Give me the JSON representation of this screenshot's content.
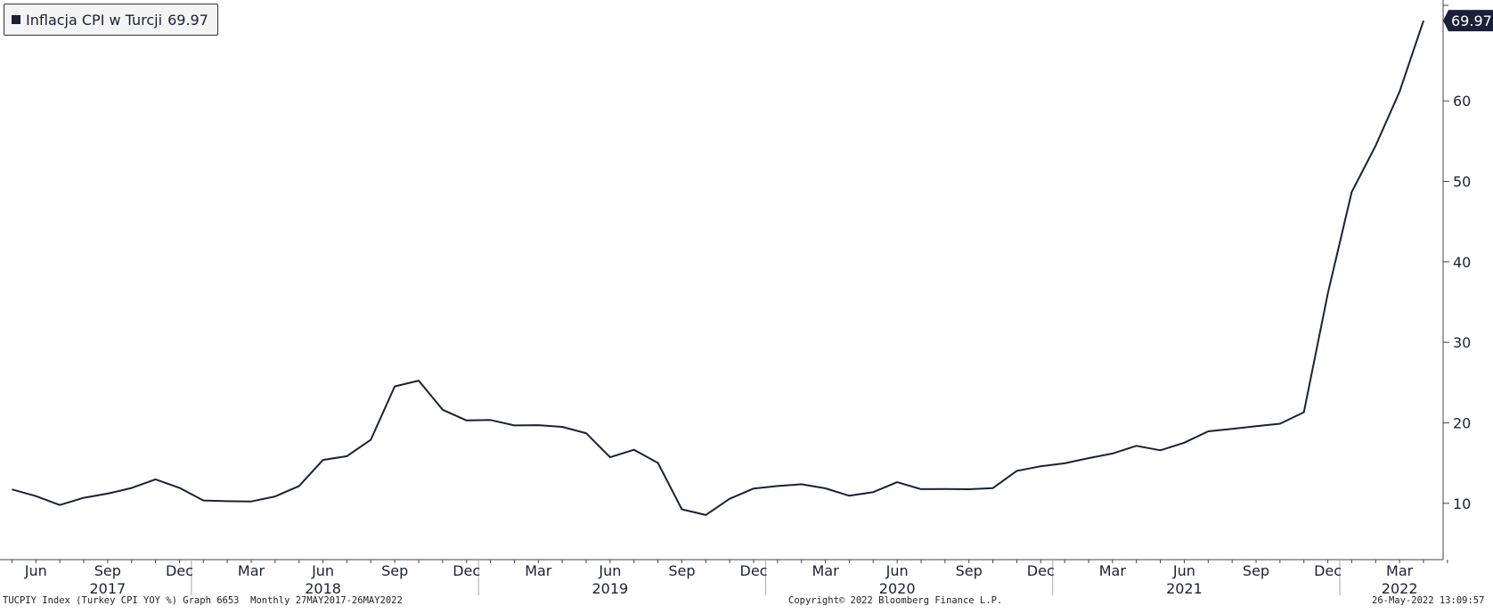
{
  "legend": {
    "label": "Inflacja CPI w Turcji",
    "value": "69.97"
  },
  "last_value_label": "69.97",
  "footer": {
    "left": "TUCPIY Index (Turkey CPI YOY %) Graph 6653  Monthly 27MAY2017-26MAY2022",
    "center": "Copyright© 2022 Bloomberg Finance L.P.",
    "right": "26-May-2022 13:09:57"
  },
  "colors": {
    "line": "#1a2038",
    "axis": "#444444"
  },
  "chart_data": {
    "type": "line",
    "title": "",
    "xlabel": "",
    "ylabel": "",
    "ylim": [
      3,
      73
    ],
    "yticks": [
      10,
      20,
      30,
      40,
      50,
      60
    ],
    "month_ticks": [
      {
        "label": "Jun",
        "x": "2017-06"
      },
      {
        "label": "Sep",
        "x": "2017-09"
      },
      {
        "label": "Dec",
        "x": "2017-12"
      },
      {
        "label": "Mar",
        "x": "2018-03"
      },
      {
        "label": "Jun",
        "x": "2018-06"
      },
      {
        "label": "Sep",
        "x": "2018-09"
      },
      {
        "label": "Dec",
        "x": "2018-12"
      },
      {
        "label": "Mar",
        "x": "2019-03"
      },
      {
        "label": "Jun",
        "x": "2019-06"
      },
      {
        "label": "Sep",
        "x": "2019-09"
      },
      {
        "label": "Dec",
        "x": "2019-12"
      },
      {
        "label": "Mar",
        "x": "2020-03"
      },
      {
        "label": "Jun",
        "x": "2020-06"
      },
      {
        "label": "Sep",
        "x": "2020-09"
      },
      {
        "label": "Dec",
        "x": "2020-12"
      },
      {
        "label": "Mar",
        "x": "2021-03"
      },
      {
        "label": "Jun",
        "x": "2021-06"
      },
      {
        "label": "Sep",
        "x": "2021-09"
      },
      {
        "label": "Dec",
        "x": "2021-12"
      },
      {
        "label": "Mar",
        "x": "2022-03"
      }
    ],
    "year_labels": [
      {
        "label": "2017",
        "x": "2017-09"
      },
      {
        "label": "2018",
        "x": "2018-06"
      },
      {
        "label": "2019",
        "x": "2019-06"
      },
      {
        "label": "2020",
        "x": "2020-06"
      },
      {
        "label": "2021",
        "x": "2021-06"
      },
      {
        "label": "2022",
        "x": "2022-03"
      }
    ],
    "year_separators": [
      "2018-01",
      "2019-01",
      "2020-01",
      "2021-01",
      "2022-01"
    ],
    "series": [
      {
        "name": "Inflacja CPI w Turcji",
        "x": [
          "2017-05",
          "2017-06",
          "2017-07",
          "2017-08",
          "2017-09",
          "2017-10",
          "2017-11",
          "2017-12",
          "2018-01",
          "2018-02",
          "2018-03",
          "2018-04",
          "2018-05",
          "2018-06",
          "2018-07",
          "2018-08",
          "2018-09",
          "2018-10",
          "2018-11",
          "2018-12",
          "2019-01",
          "2019-02",
          "2019-03",
          "2019-04",
          "2019-05",
          "2019-06",
          "2019-07",
          "2019-08",
          "2019-09",
          "2019-10",
          "2019-11",
          "2019-12",
          "2020-01",
          "2020-02",
          "2020-03",
          "2020-04",
          "2020-05",
          "2020-06",
          "2020-07",
          "2020-08",
          "2020-09",
          "2020-10",
          "2020-11",
          "2020-12",
          "2021-01",
          "2021-02",
          "2021-03",
          "2021-04",
          "2021-05",
          "2021-06",
          "2021-07",
          "2021-08",
          "2021-09",
          "2021-10",
          "2021-11",
          "2021-12",
          "2022-01",
          "2022-02",
          "2022-03",
          "2022-04"
        ],
        "values": [
          11.72,
          10.9,
          9.79,
          10.68,
          11.2,
          11.9,
          12.98,
          11.92,
          10.35,
          10.26,
          10.23,
          10.85,
          12.15,
          15.39,
          15.85,
          17.9,
          24.52,
          25.24,
          21.62,
          20.3,
          20.35,
          19.67,
          19.71,
          19.5,
          18.71,
          15.72,
          16.65,
          15.01,
          9.26,
          8.55,
          10.56,
          11.84,
          12.15,
          12.37,
          11.86,
          10.94,
          11.39,
          12.62,
          11.76,
          11.77,
          11.75,
          11.89,
          14.03,
          14.6,
          14.97,
          15.61,
          16.19,
          17.14,
          16.59,
          17.53,
          18.95,
          19.25,
          19.58,
          19.89,
          21.31,
          36.08,
          48.69,
          54.44,
          61.14,
          69.97
        ]
      }
    ],
    "grid": false,
    "legend_position": "top-left",
    "axis_side": "right"
  }
}
